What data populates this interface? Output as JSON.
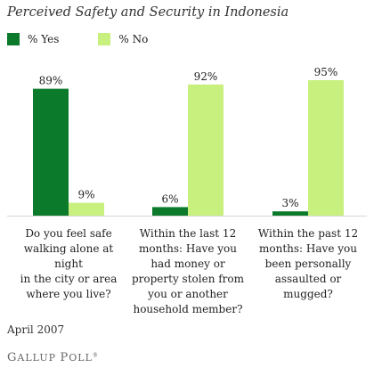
{
  "chart_data": {
    "type": "bar",
    "title": "Perceived Safety and Security in Indonesia",
    "categories": [
      "Do you feel safe walking alone at night in the city or area where you live?",
      "Within the last 12 months: Have you had money or property stolen from you or another household member?",
      "Within the past 12 months: Have you been personally assaulted or mugged?"
    ],
    "category_lines": [
      [
        "Do you feel safe",
        "walking alone at night",
        "in the city or area",
        "where you live?"
      ],
      [
        "Within the last 12",
        "months: Have you",
        "had money or",
        "property stolen from",
        "you or another",
        "household member?"
      ],
      [
        "Within the past 12",
        "months: Have you",
        "been personally",
        "assaulted or mugged?"
      ]
    ],
    "series": [
      {
        "name": "% Yes",
        "values": [
          89,
          6,
          3
        ],
        "labels": [
          "89%",
          "6%",
          "3%"
        ],
        "color": "#0c7a2b"
      },
      {
        "name": "% No",
        "values": [
          9,
          92,
          95
        ],
        "labels": [
          "9%",
          "92%",
          "95%"
        ],
        "color": "#c8f07f"
      }
    ],
    "ylim": [
      0,
      100
    ],
    "grid": false,
    "legend": "top-left"
  },
  "footnote": "April 2007",
  "logo": "Gallup Poll"
}
